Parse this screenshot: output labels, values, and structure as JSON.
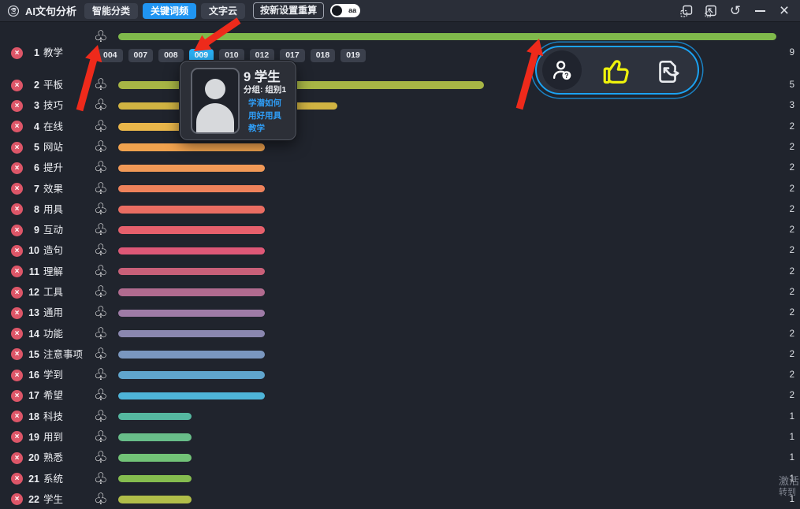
{
  "window": {
    "title": "AI文句分析",
    "minimize_glyph": "–",
    "close_glyph": "×",
    "refresh_glyph": "↺"
  },
  "topbar": {
    "tabs": [
      {
        "label": "智能分类",
        "active": false
      },
      {
        "label": "关键词频",
        "active": true
      },
      {
        "label": "文字云",
        "active": false
      }
    ],
    "recalc_label": "按新设置重算",
    "toggle_label": "aa",
    "accent_blue": "#2095f2"
  },
  "keyword_list": {
    "delete_glyph": "×",
    "cluster_glyph": "♧",
    "rows": [
      {
        "rank": 1,
        "word": "教学",
        "count": 9,
        "color": "#7fb94b"
      },
      {
        "rank": 2,
        "word": "平板",
        "count": 5,
        "color": "#a7b545"
      },
      {
        "rank": 3,
        "word": "技巧",
        "count": 3,
        "color": "#d0b342"
      },
      {
        "rank": 4,
        "word": "在线",
        "count": 2,
        "color": "#e9b64a"
      },
      {
        "rank": 5,
        "word": "网站",
        "count": 2,
        "color": "#f0a24e"
      },
      {
        "rank": 6,
        "word": "提升",
        "count": 2,
        "color": "#f19957"
      },
      {
        "rank": 7,
        "word": "效果",
        "count": 2,
        "color": "#ee825b"
      },
      {
        "rank": 8,
        "word": "用具",
        "count": 2,
        "color": "#ea6d62"
      },
      {
        "rank": 9,
        "word": "互动",
        "count": 2,
        "color": "#e6606c"
      },
      {
        "rank": 10,
        "word": "造句",
        "count": 2,
        "color": "#de5877"
      },
      {
        "rank": 11,
        "word": "理解",
        "count": 2,
        "color": "#c96079"
      },
      {
        "rank": 12,
        "word": "工具",
        "count": 2,
        "color": "#b16b8f"
      },
      {
        "rank": 13,
        "word": "通用",
        "count": 2,
        "color": "#9e7ba6"
      },
      {
        "rank": 14,
        "word": "功能",
        "count": 2,
        "color": "#8a87af"
      },
      {
        "rank": 15,
        "word": "注意事项",
        "count": 2,
        "color": "#7a97bf"
      },
      {
        "rank": 16,
        "word": "学到",
        "count": 2,
        "color": "#60a5cd"
      },
      {
        "rank": 17,
        "word": "希望",
        "count": 2,
        "color": "#4eb4d8"
      },
      {
        "rank": 18,
        "word": "科技",
        "count": 1,
        "color": "#55b8a0"
      },
      {
        "rank": 19,
        "word": "用到",
        "count": 1,
        "color": "#68bd89"
      },
      {
        "rank": 20,
        "word": "熟悉",
        "count": 1,
        "color": "#72c377"
      },
      {
        "rank": 21,
        "word": "系统",
        "count": 1,
        "color": "#85bc4f"
      },
      {
        "rank": 22,
        "word": "学生",
        "count": 1,
        "color": "#b0bd49"
      }
    ]
  },
  "row1_tags": {
    "items": [
      "004",
      "007",
      "008",
      "009",
      "010",
      "012",
      "017",
      "018",
      "019"
    ],
    "selected": "009",
    "selected_color": "#29aef2"
  },
  "tooltip": {
    "title": "9 学生",
    "group_label": "分组: 组别1",
    "link_text": "学潜如何用好用具教学",
    "link_color": "#2f9df5"
  },
  "action_bar": {
    "accent": "#1ba2f2",
    "thumb_color": "#eef20c",
    "icons": [
      "user-query",
      "thumbs-up",
      "export"
    ]
  },
  "annotations": {
    "arrow_color": "#ee2a1b",
    "arrow_count": 3
  },
  "watermark": {
    "line1": "激活",
    "line2": "转到"
  }
}
